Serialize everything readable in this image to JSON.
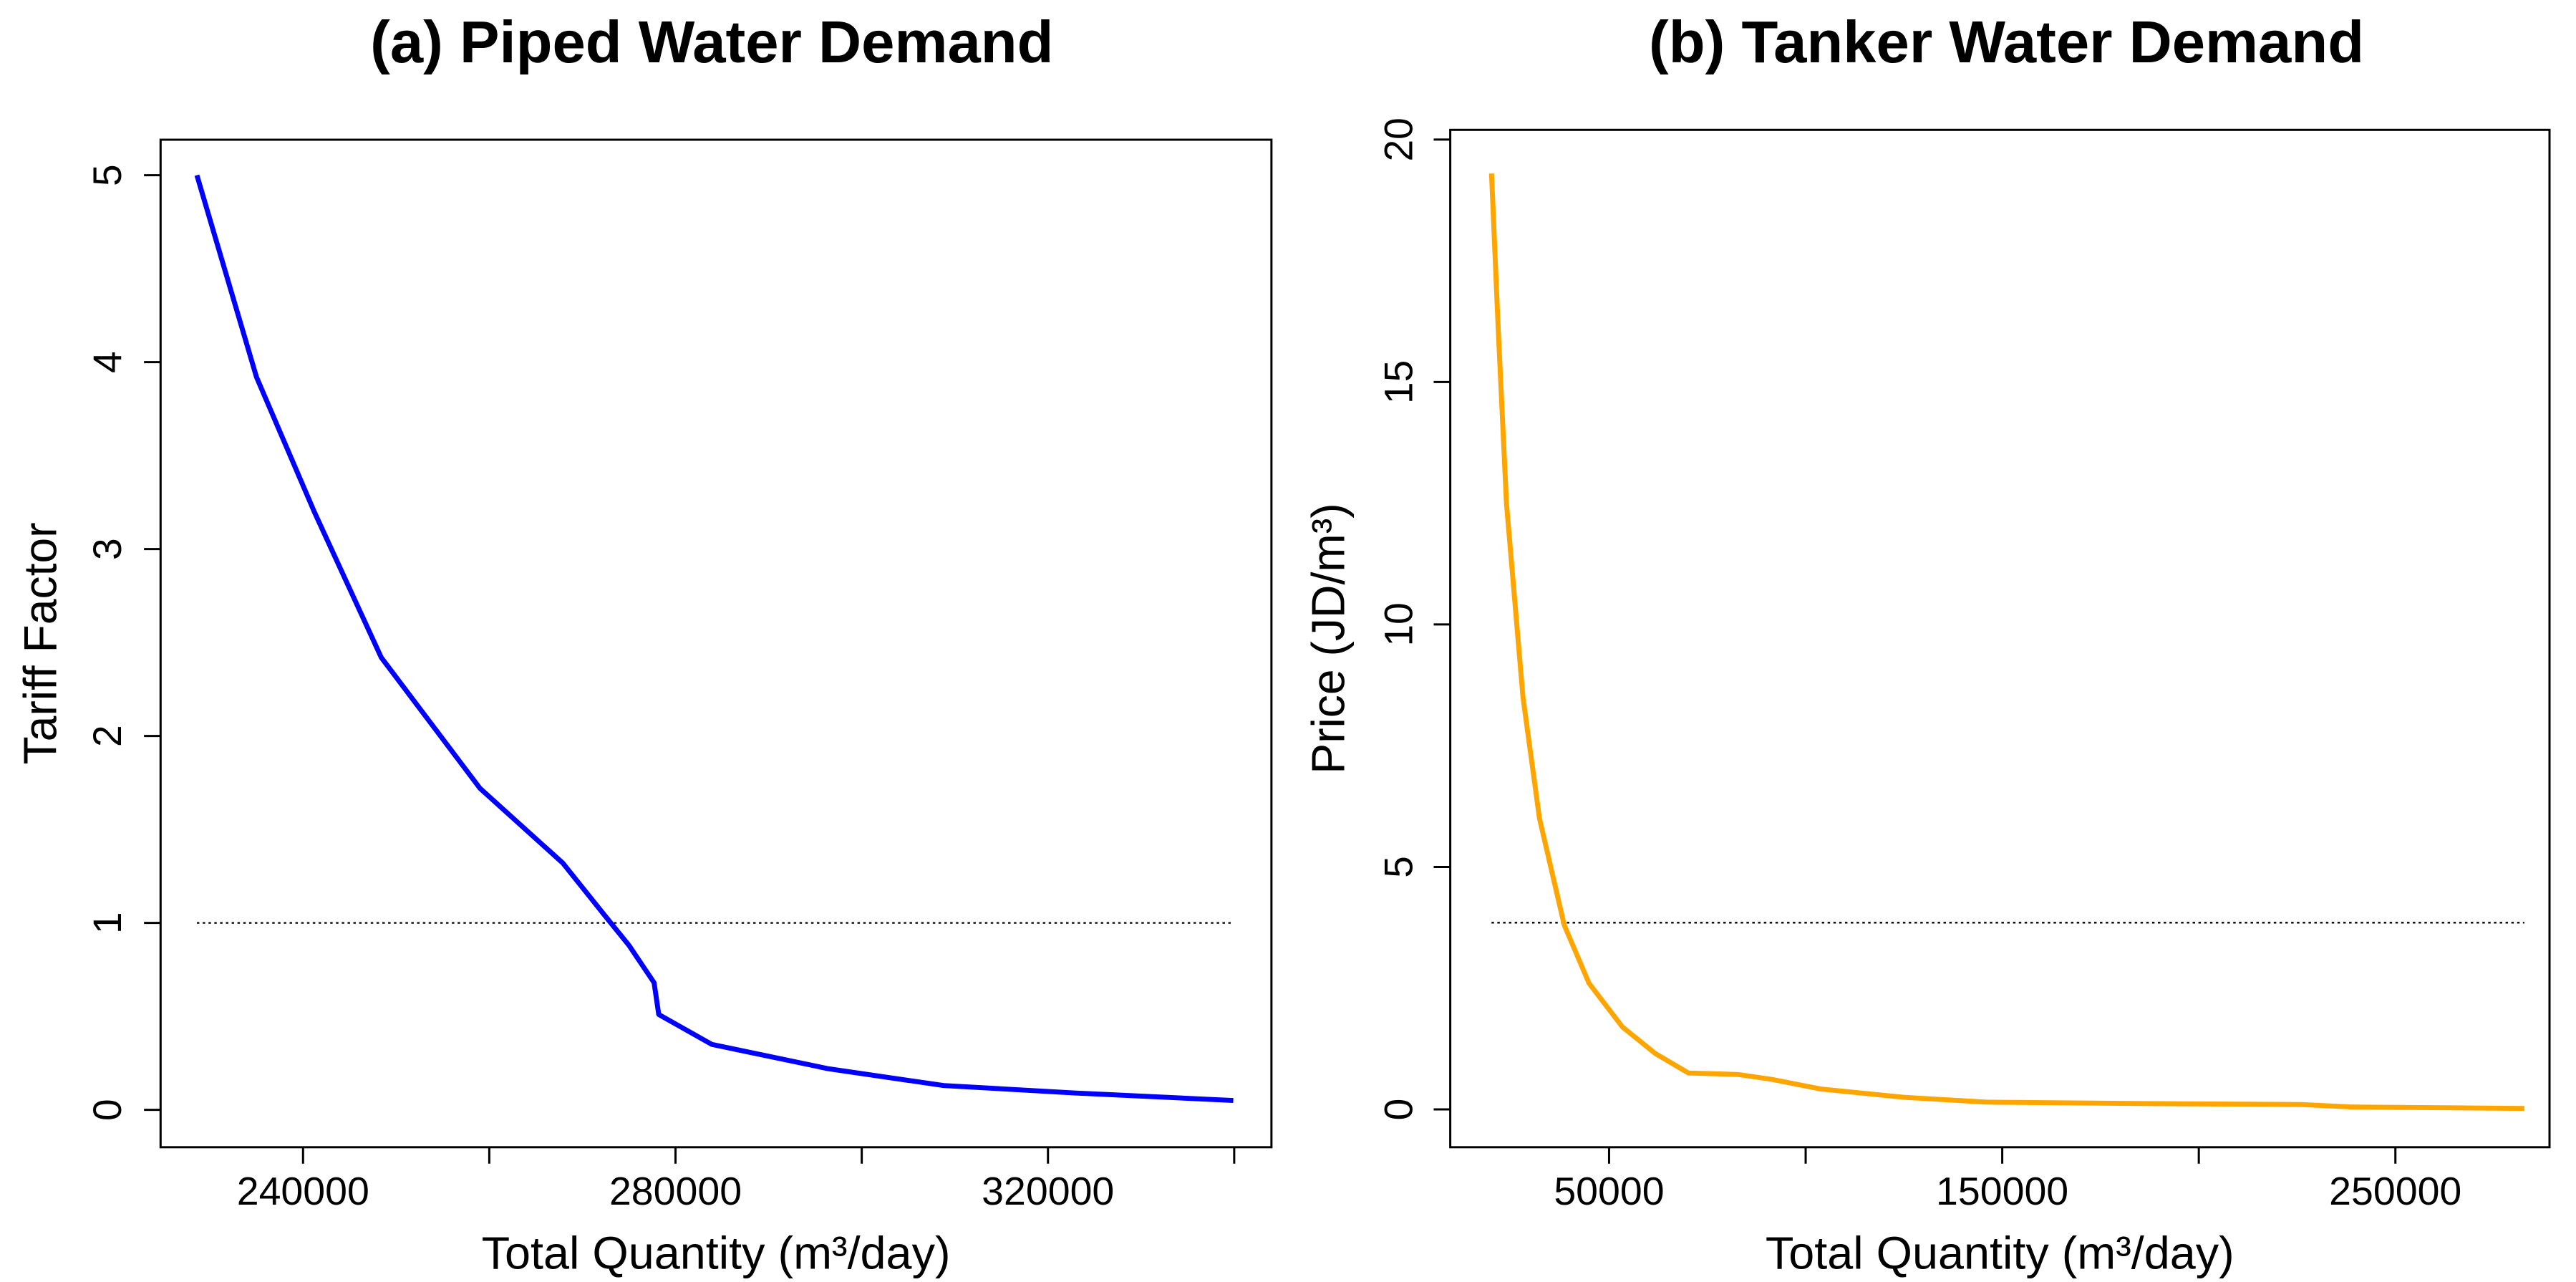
{
  "chart_data": [
    {
      "type": "line",
      "title": "(a) Piped Water Demand",
      "xlabel": "Total Quantity (m³/day)",
      "ylabel": "Tariff Factor",
      "x": [
        228600,
        235000,
        241200,
        248400,
        259000,
        267900,
        272400,
        275000,
        277700,
        278200,
        283900,
        296400,
        308800,
        323000,
        339900
      ],
      "values": [
        5.0,
        3.92,
        3.2,
        2.42,
        1.72,
        1.32,
        1.04,
        0.88,
        0.68,
        0.51,
        0.35,
        0.22,
        0.13,
        0.09,
        0.05
      ],
      "color": "#0000ff",
      "reference_line": {
        "y": 1,
        "x": [
          228600,
          339900
        ]
      },
      "xlim": [
        224700,
        344000
      ],
      "ylim": [
        -0.2,
        5.19
      ],
      "xticks": [
        240000,
        280000,
        320000
      ],
      "xminorticks": [
        260000,
        300000,
        340000
      ],
      "yticks": [
        0,
        1,
        2,
        3,
        4,
        5
      ]
    },
    {
      "type": "line",
      "title": "(b) Tanker Water Demand",
      "xlabel": "Total Quantity (m³/day)",
      "ylabel": "Price (JD/m³)",
      "x": [
        20100,
        21800,
        23900,
        28100,
        32300,
        38600,
        44900,
        53400,
        61800,
        70200,
        82800,
        91300,
        103900,
        124900,
        145900,
        188000,
        226000,
        238600,
        282800
      ],
      "values": [
        19.3,
        16.1,
        12.5,
        8.5,
        6.0,
        3.8,
        2.6,
        1.7,
        1.15,
        0.75,
        0.72,
        0.62,
        0.42,
        0.25,
        0.15,
        0.12,
        0.1,
        0.05,
        0.02
      ],
      "color": "#ffa500",
      "reference_line": {
        "y": 3.85,
        "x": [
          20100,
          282800
        ]
      },
      "xlim": [
        9600,
        289200
      ],
      "ylim": [
        -0.78,
        20.2
      ],
      "xticks": [
        50000,
        150000,
        250000
      ],
      "xminorticks": [
        100000,
        200000
      ],
      "yticks": [
        0,
        5,
        10,
        15,
        20
      ]
    }
  ]
}
